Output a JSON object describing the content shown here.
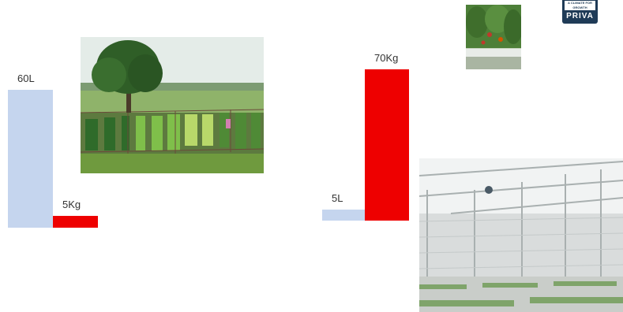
{
  "chart_data": [
    {
      "type": "bar",
      "categories": [
        "60L",
        "5Kg"
      ],
      "values": [
        60,
        5
      ],
      "colors": [
        "#c5d5ee",
        "#ee0000"
      ],
      "data_labels": [
        "60L",
        "5Kg"
      ]
    },
    {
      "type": "bar",
      "categories": [
        "5L",
        "70Kg"
      ],
      "values": [
        5,
        70
      ],
      "colors": [
        "#c5d5ee",
        "#ee0000"
      ],
      "data_labels": [
        "5L",
        "70Kg"
      ]
    }
  ],
  "photos": [
    "garden-photo",
    "tomato-plants-photo",
    "greenhouse-photo"
  ],
  "logo": {
    "tagline": "A CLIMATE FOR GROWTH",
    "brand": "PRIVA"
  }
}
